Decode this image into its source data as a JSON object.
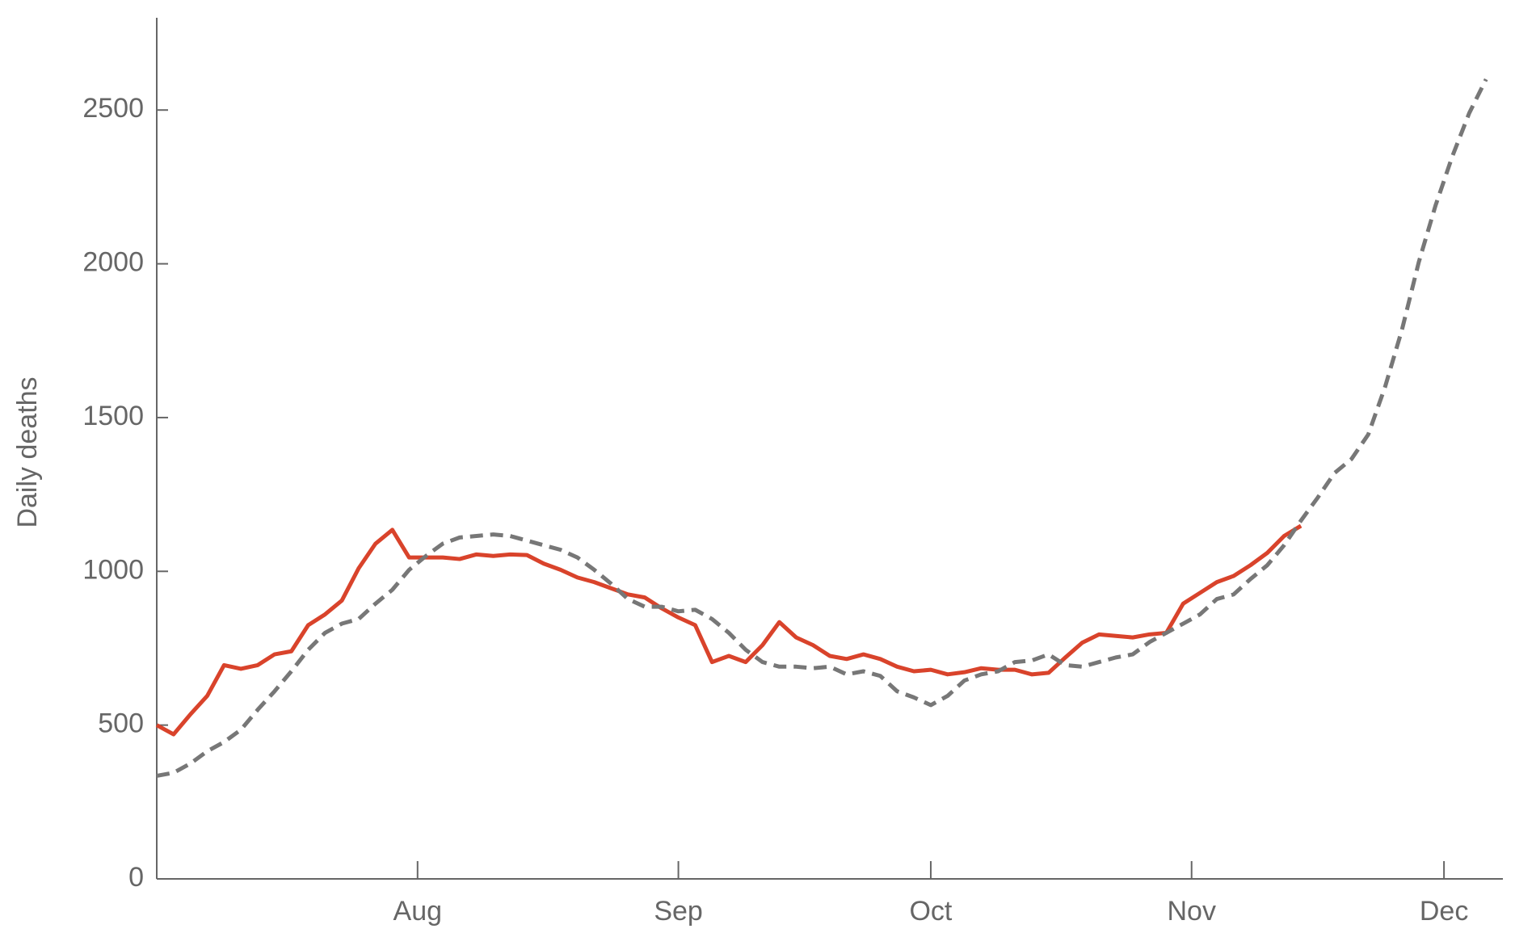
{
  "chart_data": {
    "type": "line",
    "y_label": "Daily deaths",
    "x": [
      0,
      2,
      4,
      6,
      8,
      10,
      12,
      14,
      16,
      18,
      20,
      22,
      24,
      26,
      28,
      30,
      32,
      34,
      36,
      38,
      40,
      42,
      44,
      46,
      48,
      50,
      52,
      54,
      56,
      58,
      60,
      62,
      64,
      66,
      68,
      70,
      72,
      74,
      76,
      78,
      80,
      82,
      84,
      86,
      88,
      90,
      92,
      94,
      96,
      98,
      100,
      102,
      104,
      106,
      108,
      110,
      112,
      114,
      116,
      118,
      120,
      122,
      124,
      126,
      128,
      130,
      132,
      134,
      136,
      138,
      140,
      142,
      144,
      146,
      148,
      150,
      152,
      154,
      156,
      158,
      160
    ],
    "xlim": [
      0,
      160
    ],
    "xticks": [
      {
        "value": 31,
        "label": "Aug"
      },
      {
        "value": 62,
        "label": "Sep"
      },
      {
        "value": 92,
        "label": "Oct"
      },
      {
        "value": 123,
        "label": "Nov"
      },
      {
        "value": 153,
        "label": "Dec"
      }
    ],
    "ylim": [
      0,
      2800
    ],
    "yticks": [
      0,
      500,
      1000,
      1500,
      2000,
      2500
    ],
    "series": [
      {
        "color": "#d9432b",
        "dashed": false,
        "values": [
          500,
          470,
          535,
          595,
          695,
          683,
          695,
          730,
          740,
          825,
          860,
          905,
          1010,
          1090,
          1135,
          1045,
          1045,
          1045,
          1040,
          1055,
          1050,
          1055,
          1053,
          1025,
          1005,
          980,
          965,
          945,
          925,
          915,
          880,
          850,
          825,
          705,
          725,
          705,
          760,
          835,
          785,
          760,
          725,
          715,
          730,
          715,
          690,
          675,
          680,
          665,
          672,
          685,
          680,
          680,
          665,
          670,
          720,
          768,
          795,
          790,
          785,
          795,
          800,
          895,
          930,
          965,
          985,
          1020,
          1060,
          1115,
          1148,
          null,
          null,
          null,
          null,
          null,
          null,
          null,
          null,
          null,
          null,
          null,
          null
        ]
      },
      {
        "color": "#777777",
        "dashed": true,
        "values": [
          335,
          345,
          375,
          415,
          445,
          485,
          550,
          610,
          675,
          745,
          800,
          830,
          845,
          895,
          940,
          1005,
          1050,
          1090,
          1110,
          1115,
          1120,
          1115,
          1100,
          1085,
          1070,
          1045,
          1005,
          960,
          910,
          885,
          885,
          870,
          875,
          845,
          800,
          745,
          705,
          690,
          690,
          685,
          690,
          665,
          675,
          660,
          610,
          590,
          565,
          595,
          645,
          665,
          675,
          705,
          710,
          730,
          695,
          690,
          705,
          720,
          730,
          770,
          800,
          830,
          860,
          910,
          925,
          975,
          1020,
          1085,
          1165,
          1240,
          1320,
          1365,
          1445,
          1600,
          1785,
          2005,
          2190,
          2350,
          2490,
          2600,
          null
        ]
      }
    ]
  }
}
